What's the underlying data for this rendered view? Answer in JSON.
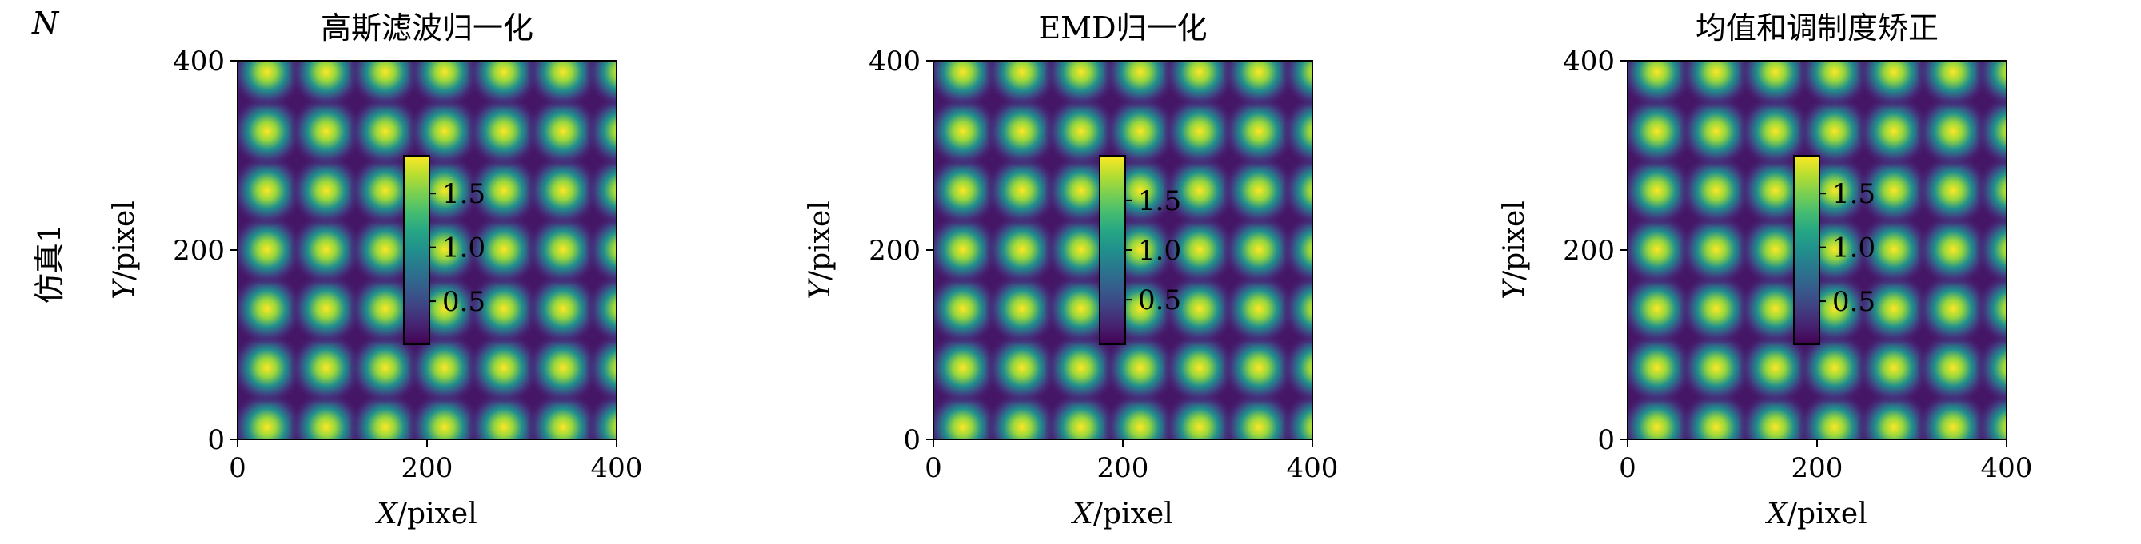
{
  "corner_label": "N",
  "row_label": "仿真1",
  "chart_data": [
    {
      "type": "heatmap",
      "title": "高斯滤波归一化",
      "xlabel_var": "X",
      "xlabel_unit": "/pixel",
      "ylabel_var": "Y",
      "ylabel_unit": "/pixel",
      "xlim": [
        0,
        400
      ],
      "ylim": [
        0,
        400
      ],
      "xticks": [
        0,
        200,
        400
      ],
      "yticks": [
        0,
        200,
        400
      ],
      "colorbar": {
        "range": [
          0.1,
          1.85
        ],
        "ticks": [
          0.5,
          1.0,
          1.5
        ],
        "tick_labels": [
          "0.5",
          "1.0",
          "1.5"
        ],
        "colormap": "viridis"
      },
      "pattern": {
        "spot_period_x": 62.5,
        "spot_period_y": 62.5,
        "spot_offset_x": 31,
        "spot_offset_y": 13,
        "min": 0.1,
        "max": 1.85,
        "cols": 7,
        "rows": 7
      }
    },
    {
      "type": "heatmap",
      "title": "EMD归一化",
      "xlabel_var": "X",
      "xlabel_unit": "/pixel",
      "ylabel_var": "Y",
      "ylabel_unit": "/pixel",
      "xlim": [
        0,
        400
      ],
      "ylim": [
        0,
        400
      ],
      "xticks": [
        0,
        200,
        400
      ],
      "yticks": [
        0,
        200,
        400
      ],
      "colorbar": {
        "range": [
          0.05,
          1.95
        ],
        "ticks": [
          0.5,
          1.0,
          1.5
        ],
        "tick_labels": [
          "0.5",
          "1.0",
          "1.5"
        ],
        "colormap": "viridis"
      },
      "pattern": {
        "spot_period_x": 62.5,
        "spot_period_y": 62.5,
        "spot_offset_x": 31,
        "spot_offset_y": 13,
        "min": 0.05,
        "max": 1.95,
        "cols": 7,
        "rows": 7
      }
    },
    {
      "type": "heatmap",
      "title": "均值和调制度矫正",
      "xlabel_var": "X",
      "xlabel_unit": "/pixel",
      "ylabel_var": "Y",
      "ylabel_unit": "/pixel",
      "xlim": [
        0,
        400
      ],
      "ylim": [
        0,
        400
      ],
      "xticks": [
        0,
        200,
        400
      ],
      "yticks": [
        0,
        200,
        400
      ],
      "colorbar": {
        "range": [
          0.1,
          1.85
        ],
        "ticks": [
          0.5,
          1.0,
          1.5
        ],
        "tick_labels": [
          "0.5",
          "1.0",
          "1.5"
        ],
        "colormap": "viridis"
      },
      "pattern": {
        "spot_period_x": 62.5,
        "spot_period_y": 62.5,
        "spot_offset_x": 31,
        "spot_offset_y": 13,
        "min": 0.1,
        "max": 1.85,
        "cols": 7,
        "rows": 7
      }
    }
  ]
}
